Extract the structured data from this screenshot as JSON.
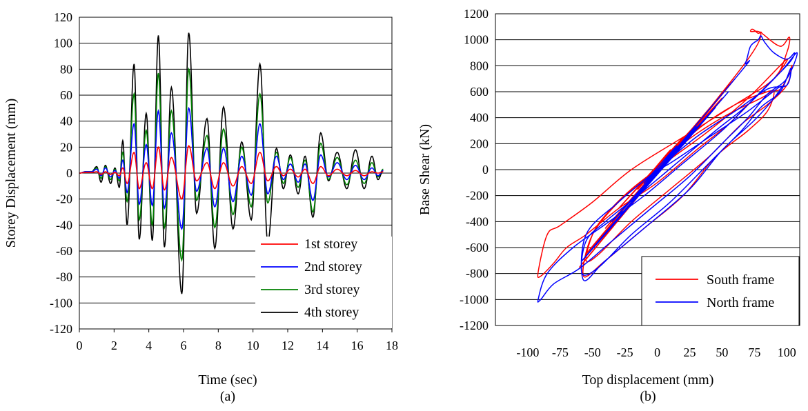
{
  "chart_data": [
    {
      "type": "line",
      "panel_label": "(a)",
      "xlabel": "Time (sec)",
      "ylabel": "Storey Displacement (mm)",
      "xlim": [
        0,
        18
      ],
      "ylim": [
        -120,
        120
      ],
      "xticks": [
        "0",
        "2",
        "4",
        "6",
        "8",
        "10",
        "12",
        "14",
        "16",
        "18"
      ],
      "yticks": [
        "120",
        "100",
        "80",
        "60",
        "40",
        "20",
        "0",
        "-20",
        "-40",
        "-60",
        "-80",
        "-100",
        "-120"
      ],
      "grid": "horizontal",
      "legend_position": "bottom-right",
      "peak_times": [
        0,
        0.35,
        0.7,
        1.0,
        1.25,
        1.5,
        1.8,
        2.05,
        2.3,
        2.5,
        2.75,
        3.15,
        3.45,
        3.85,
        4.2,
        4.55,
        4.9,
        5.3,
        5.9,
        6.3,
        6.75,
        7.35,
        7.8,
        8.3,
        8.85,
        9.35,
        9.9,
        10.4,
        10.85,
        11.35,
        11.75,
        12.15,
        12.6,
        13.0,
        13.45,
        13.9,
        14.35,
        14.85,
        15.4,
        15.9,
        16.4,
        16.85,
        17.2,
        17.5
      ],
      "series": [
        {
          "name": "1st storey",
          "color": "#ff0000",
          "peaks": [
            0,
            0.5,
            0.5,
            1,
            -1,
            1,
            -1,
            0.5,
            -2,
            4,
            -8,
            16,
            -12,
            8,
            -12,
            20,
            -13,
            12,
            -20,
            21,
            -6,
            8,
            -12,
            8,
            -10,
            5,
            -8,
            16,
            -6,
            5,
            -2,
            3,
            -3,
            3,
            -8,
            5,
            -2,
            3,
            -2,
            2,
            -2,
            1,
            0,
            1
          ]
        },
        {
          "name": "2nd storey",
          "color": "#0000ff",
          "peaks": [
            0,
            1,
            1,
            3,
            -2,
            4,
            -3,
            2,
            -4,
            10,
            -15,
            38,
            -24,
            22,
            -25,
            48,
            -27,
            31,
            -43,
            50,
            -14,
            19,
            -26,
            19,
            -22,
            13,
            -17,
            38,
            -16,
            13,
            -5,
            7,
            -7,
            7,
            -21,
            14,
            -3,
            8,
            -5,
            6,
            -5,
            4,
            -2,
            2
          ]
        },
        {
          "name": "3rd storey",
          "color": "#008000",
          "peaks": [
            0,
            1,
            1,
            4,
            -4,
            5,
            -5,
            3,
            -6,
            16,
            -22,
            61,
            -36,
            33,
            -40,
            77,
            -42,
            48,
            -67,
            80,
            -21,
            29,
            -42,
            34,
            -32,
            20,
            -26,
            61,
            -23,
            16,
            -8,
            12,
            -11,
            10,
            -30,
            23,
            -5,
            12,
            -9,
            10,
            -8,
            8,
            -3,
            3
          ]
        },
        {
          "name": "4th storey",
          "color": "#000000",
          "peaks": [
            0,
            1,
            1,
            5,
            -7,
            6,
            -8,
            4,
            -11,
            25,
            -40,
            84,
            -51,
            46,
            -52,
            106,
            -57,
            66,
            -93,
            108,
            -31,
            42,
            -58,
            51,
            -43,
            24,
            -36,
            84,
            -53,
            19,
            -12,
            14,
            -16,
            13,
            -34,
            31,
            -6,
            16,
            -12,
            18,
            -12,
            13,
            -5,
            2
          ]
        }
      ]
    },
    {
      "type": "line",
      "panel_label": "(b)",
      "xlabel": "Top displacement (mm)",
      "ylabel": "Base Shear (kN)",
      "xlim": [
        -125,
        110
      ],
      "ylim": [
        -1200,
        1200
      ],
      "xticks": [
        "-100",
        "-75",
        "-50",
        "-25",
        "0",
        "25",
        "50",
        "75",
        "100"
      ],
      "yticks": [
        "1200",
        "1000",
        "800",
        "600",
        "400",
        "200",
        "0",
        "-200",
        "-400",
        "-600",
        "-800",
        "-1000",
        "-1200"
      ],
      "grid": "horizontal",
      "legend_position": "bottom-right",
      "series": [
        {
          "name": "South frame",
          "color": "#ff0000",
          "x": [
            0,
            10,
            -15,
            20,
            -30,
            35,
            -40,
            50,
            -55,
            60,
            -60,
            70,
            72,
            78,
            80,
            82,
            95,
            102,
            100,
            90,
            60,
            20,
            -20,
            -50,
            -75,
            -85,
            -92,
            -90,
            -80,
            -70,
            -55,
            -30,
            0,
            30,
            55,
            75,
            90,
            100,
            70,
            40,
            10,
            -20,
            -40,
            -50,
            -55,
            -45,
            -20,
            10,
            40,
            65,
            85,
            100,
            104,
            102,
            95,
            85,
            60,
            30,
            5,
            -25,
            -50,
            -57,
            -40,
            -10,
            20,
            45,
            70,
            85,
            90,
            80,
            50,
            20,
            0
          ],
          "y": [
            0,
            150,
            -150,
            250,
            -300,
            400,
            -450,
            550,
            -650,
            700,
            -750,
            850,
            1070,
            1050,
            1060,
            1040,
            950,
            1020,
            900,
            700,
            500,
            250,
            0,
            -250,
            -430,
            -500,
            -790,
            -820,
            -720,
            -600,
            -500,
            -300,
            -100,
            150,
            350,
            550,
            700,
            850,
            550,
            300,
            80,
            -150,
            -350,
            -500,
            -700,
            -650,
            -400,
            -150,
            100,
            350,
            500,
            650,
            800,
            750,
            620,
            600,
            500,
            300,
            50,
            -200,
            -500,
            -820,
            -700,
            -450,
            -200,
            100,
            300,
            450,
            600,
            550,
            400,
            200,
            0
          ]
        },
        {
          "name": "North frame",
          "color": "#0000ff",
          "x": [
            0,
            -10,
            15,
            -20,
            30,
            -35,
            45,
            -45,
            55,
            -58,
            60,
            68,
            72,
            78,
            80,
            83,
            90,
            100,
            106,
            104,
            98,
            88,
            70,
            50,
            20,
            -10,
            -40,
            -65,
            -85,
            -92,
            -90,
            -80,
            -60,
            -35,
            -5,
            25,
            50,
            70,
            85,
            100,
            108,
            95,
            70,
            45,
            15,
            -15,
            -40,
            -55,
            -58,
            -45,
            -20,
            10,
            40,
            65,
            80,
            95,
            103,
            100,
            85,
            60,
            30,
            0,
            -30,
            -55,
            -57,
            -40,
            -10,
            25,
            50,
            75,
            90,
            95,
            70,
            40,
            10,
            0
          ],
          "y": [
            0,
            -100,
            180,
            -250,
            330,
            -400,
            480,
            -550,
            600,
            -700,
            700,
            820,
            950,
            1000,
            1030,
            980,
            900,
            850,
            900,
            850,
            780,
            680,
            500,
            300,
            50,
            -200,
            -420,
            -600,
            -800,
            -1000,
            -1000,
            -880,
            -760,
            -550,
            -300,
            -50,
            200,
            400,
            580,
            700,
            900,
            750,
            500,
            300,
            50,
            -200,
            -400,
            -550,
            -800,
            -750,
            -500,
            -250,
            50,
            300,
            480,
            600,
            780,
            650,
            620,
            450,
            250,
            0,
            -250,
            -500,
            -850,
            -700,
            -450,
            -150,
            150,
            380,
            550,
            640,
            450,
            250,
            50,
            0
          ]
        }
      ]
    }
  ]
}
